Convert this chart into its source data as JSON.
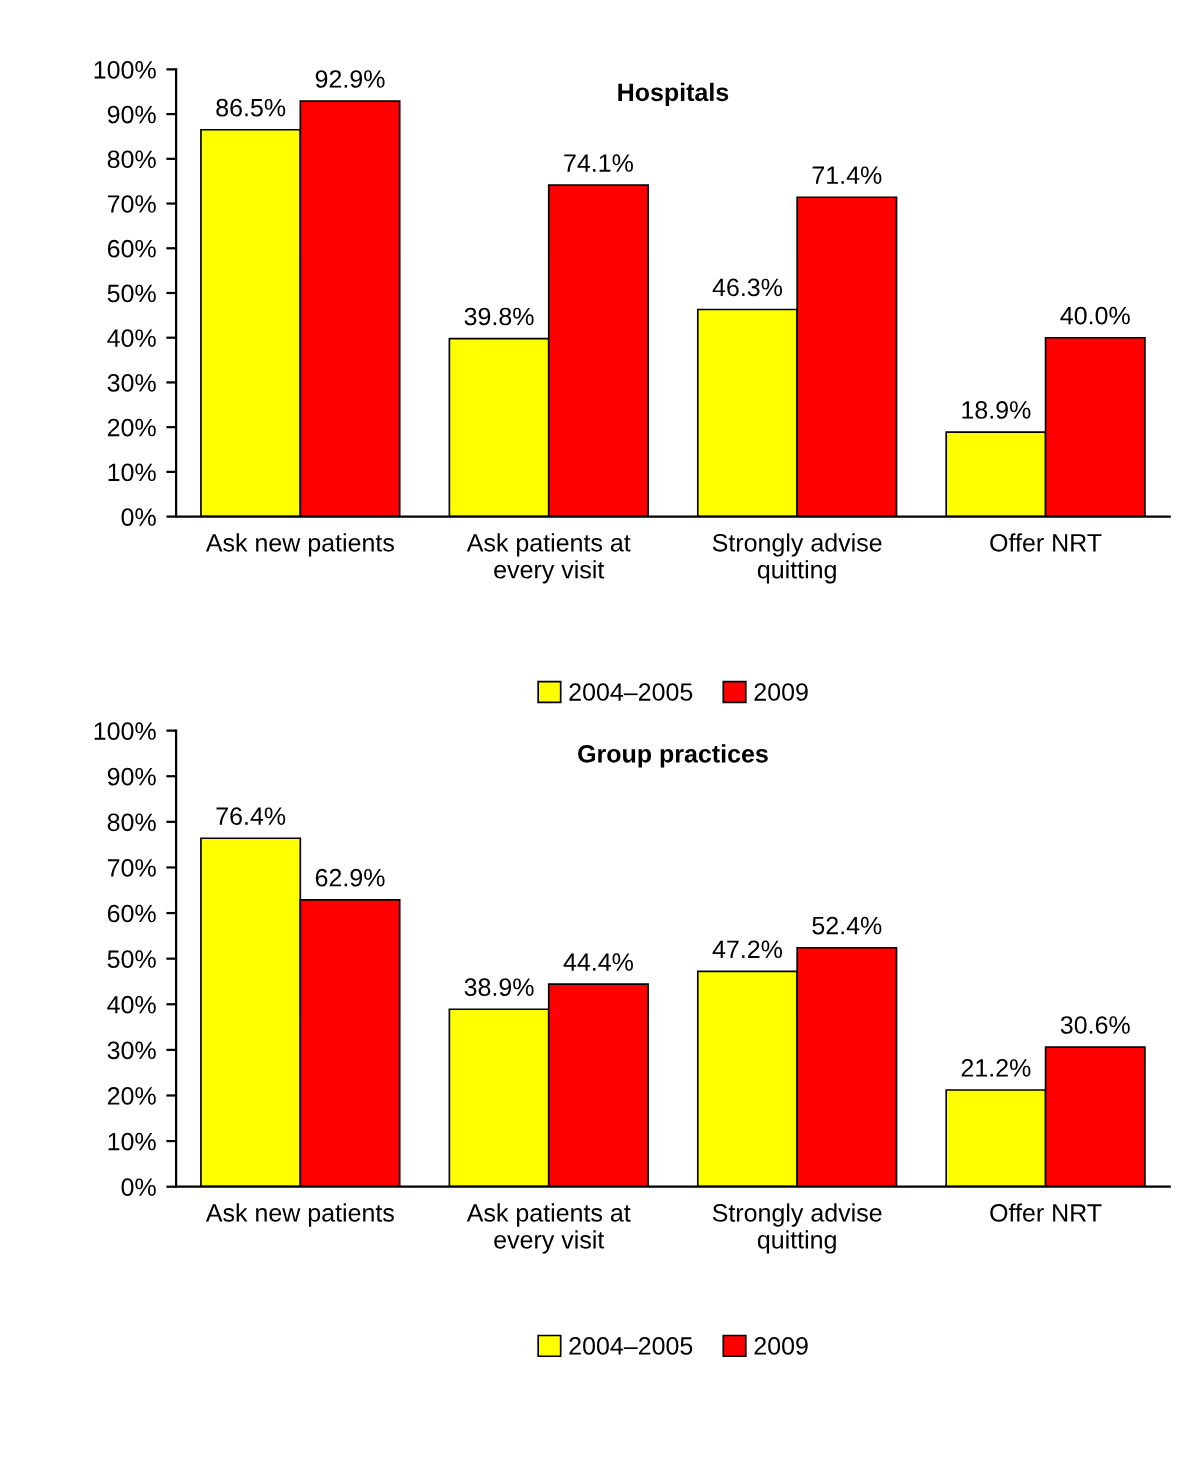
{
  "chart_data": [
    {
      "type": "bar",
      "title": "Hospitals",
      "categories": [
        "Ask new patients",
        "Ask patients at\nevery visit",
        "Strongly advise\nquitting",
        "Offer NRT"
      ],
      "series": [
        {
          "name": "2004–2005",
          "color": "#ffff00",
          "values": [
            86.5,
            39.8,
            46.3,
            18.9
          ],
          "value_labels": [
            "86.5%",
            "39.8%",
            "46.3%",
            "18.9%"
          ]
        },
        {
          "name": "2009",
          "color": "#ff0000",
          "values": [
            92.9,
            74.1,
            71.4,
            40.0
          ],
          "value_labels": [
            "92.9%",
            "74.1%",
            "71.4%",
            "40.0%"
          ]
        }
      ],
      "ylim": [
        0,
        100
      ],
      "yticks": [
        {
          "value": 0,
          "label": "0%"
        },
        {
          "value": 10,
          "label": "10%"
        },
        {
          "value": 20,
          "label": "20%"
        },
        {
          "value": 30,
          "label": "30%"
        },
        {
          "value": 40,
          "label": "40%"
        },
        {
          "value": 50,
          "label": "50%"
        },
        {
          "value": 60,
          "label": "60%"
        },
        {
          "value": 70,
          "label": "70%"
        },
        {
          "value": 80,
          "label": "80%"
        },
        {
          "value": 90,
          "label": "90%"
        },
        {
          "value": 100,
          "label": "100%"
        }
      ],
      "grid": false,
      "legend": "bottom"
    },
    {
      "type": "bar",
      "title": "Group practices",
      "categories": [
        "Ask new patients",
        "Ask patients at\nevery visit",
        "Strongly advise\nquitting",
        "Offer NRT"
      ],
      "series": [
        {
          "name": "2004–2005",
          "color": "#ffff00",
          "values": [
            76.4,
            38.9,
            47.2,
            21.2
          ],
          "value_labels": [
            "76.4%",
            "38.9%",
            "47.2%",
            "21.2%"
          ]
        },
        {
          "name": "2009",
          "color": "#ff0000",
          "values": [
            62.9,
            44.4,
            52.4,
            30.6
          ],
          "value_labels": [
            "62.9%",
            "44.4%",
            "52.4%",
            "30.6%"
          ]
        }
      ],
      "ylim": [
        0,
        100
      ],
      "yticks": [
        {
          "value": 0,
          "label": "0%"
        },
        {
          "value": 10,
          "label": "10%"
        },
        {
          "value": 20,
          "label": "20%"
        },
        {
          "value": 30,
          "label": "30%"
        },
        {
          "value": 40,
          "label": "40%"
        },
        {
          "value": 50,
          "label": "50%"
        },
        {
          "value": 60,
          "label": "60%"
        },
        {
          "value": 70,
          "label": "70%"
        },
        {
          "value": 80,
          "label": "80%"
        },
        {
          "value": 90,
          "label": "90%"
        },
        {
          "value": 100,
          "label": "100%"
        }
      ],
      "grid": false,
      "legend": "bottom"
    }
  ]
}
